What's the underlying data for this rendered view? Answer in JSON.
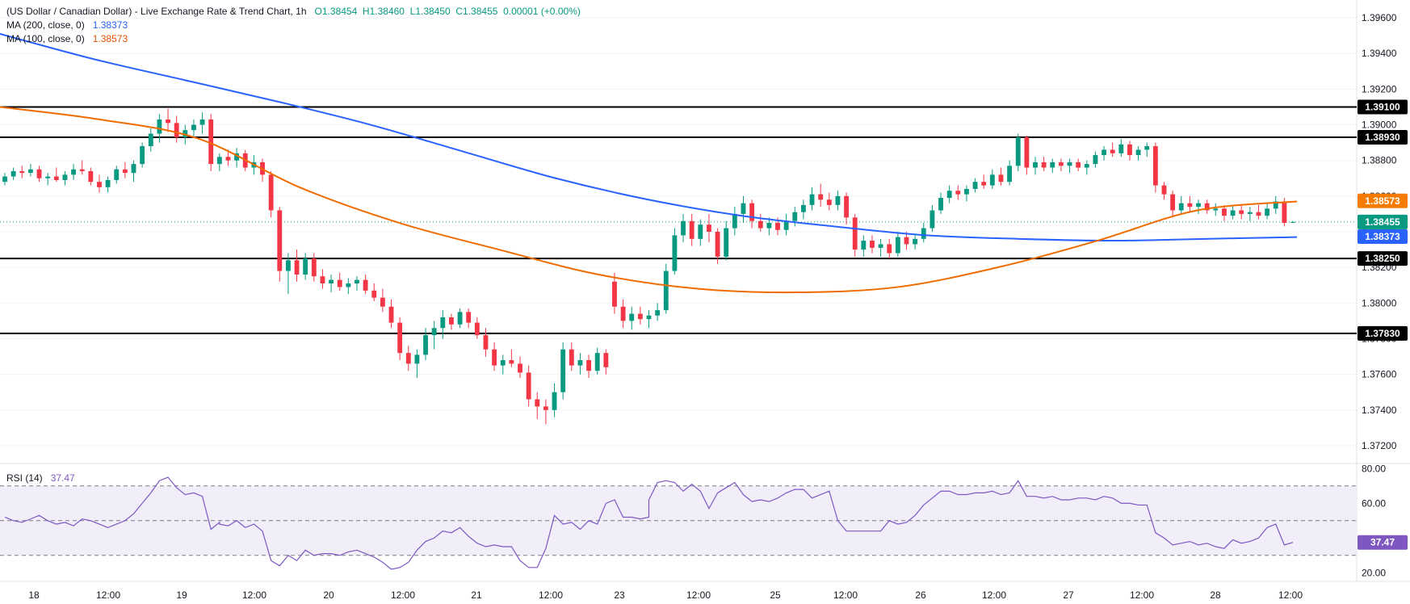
{
  "legend": {
    "title": "(US Dollar / Canadian Dollar) - Live Exchange Rate & Trend Chart, 1h",
    "open": "O1.38454",
    "high": "H1.38460",
    "low": "L1.38450",
    "close": "C1.38455",
    "change": "0.00001 (+0.00%)",
    "ma200_label": "MA (200, close, 0)",
    "ma200_value": "1.38373",
    "ma100_label": "MA (100, close, 0)",
    "ma100_value": "1.38573",
    "rsi_label": "RSI (14)",
    "rsi_value": "37.47"
  },
  "colors": {
    "up": "#089981",
    "down": "#f23645",
    "ma200": "#2962ff",
    "ma100": "#ef6c00",
    "rsi": "#7e57c2",
    "rsi_band": "#ede7f6",
    "level": "#000000",
    "grid": "#f0f3fa"
  },
  "chart_data": [
    {
      "type": "candlestick",
      "title": "",
      "ylim": [
        1.371,
        1.397
      ],
      "y_ticks": [
        "1.39600",
        "1.39400",
        "1.39200",
        "1.39000",
        "1.38800",
        "1.38600",
        "1.38400",
        "1.38200",
        "1.38000",
        "1.37800",
        "1.37600",
        "1.37400",
        "1.37200"
      ],
      "x_ticks": [
        "18",
        "12:00",
        "19",
        "12:00",
        "20",
        "12:00",
        "21",
        "12:00",
        "23",
        "12:00",
        "25",
        "12:00",
        "26",
        "12:00",
        "27",
        "12:00",
        "28",
        "12:00"
      ],
      "current_price_label": "1.38455",
      "horizontal_levels": [
        {
          "value": 1.391,
          "label": "1.39100"
        },
        {
          "value": 1.3893,
          "label": "1.38930"
        },
        {
          "value": 1.3825,
          "label": "1.38250"
        },
        {
          "value": 1.3783,
          "label": "1.37830"
        }
      ],
      "ma_tags": [
        {
          "value": 1.38573,
          "label": "1.38573"
        },
        {
          "value": 1.38373,
          "label": "1.38373"
        }
      ],
      "candles": [
        [
          1.3868,
          1.3873,
          1.3866,
          1.3871
        ],
        [
          1.3871,
          1.3876,
          1.3869,
          1.3874
        ],
        [
          1.3874,
          1.3877,
          1.387,
          1.3873
        ],
        [
          1.3873,
          1.3878,
          1.3871,
          1.3875
        ],
        [
          1.3875,
          1.3877,
          1.3868,
          1.387
        ],
        [
          1.387,
          1.3873,
          1.3866,
          1.3871
        ],
        [
          1.3871,
          1.3876,
          1.3868,
          1.3869
        ],
        [
          1.3869,
          1.3874,
          1.3866,
          1.3872
        ],
        [
          1.3872,
          1.3878,
          1.3869,
          1.3875
        ],
        [
          1.3875,
          1.388,
          1.3872,
          1.3874
        ],
        [
          1.3874,
          1.3876,
          1.3866,
          1.3868
        ],
        [
          1.3868,
          1.3872,
          1.3862,
          1.3865
        ],
        [
          1.3865,
          1.3871,
          1.3862,
          1.3869
        ],
        [
          1.3869,
          1.3877,
          1.3867,
          1.3875
        ],
        [
          1.3875,
          1.3879,
          1.387,
          1.3873
        ],
        [
          1.3873,
          1.388,
          1.3868,
          1.3878
        ],
        [
          1.3878,
          1.389,
          1.3876,
          1.3888
        ],
        [
          1.3888,
          1.3898,
          1.3885,
          1.3895
        ],
        [
          1.3895,
          1.3906,
          1.389,
          1.3903
        ],
        [
          1.3903,
          1.3909,
          1.3896,
          1.3901
        ],
        [
          1.3901,
          1.3905,
          1.389,
          1.3893
        ],
        [
          1.3893,
          1.39,
          1.3889,
          1.3897
        ],
        [
          1.3897,
          1.3903,
          1.3893,
          1.39
        ],
        [
          1.39,
          1.3907,
          1.3895,
          1.3903
        ],
        [
          1.3903,
          1.3906,
          1.3874,
          1.3878
        ],
        [
          1.3878,
          1.3884,
          1.3874,
          1.3882
        ],
        [
          1.3882,
          1.3886,
          1.3877,
          1.388
        ],
        [
          1.388,
          1.3887,
          1.3876,
          1.3884
        ],
        [
          1.3884,
          1.3886,
          1.3874,
          1.3876
        ],
        [
          1.3876,
          1.3883,
          1.3872,
          1.3879
        ],
        [
          1.3879,
          1.3881,
          1.3868,
          1.3872
        ],
        [
          1.3872,
          1.3874,
          1.3848,
          1.3852
        ],
        [
          1.3852,
          1.3854,
          1.3812,
          1.3818
        ],
        [
          1.3818,
          1.3828,
          1.3805,
          1.3824
        ],
        [
          1.3824,
          1.383,
          1.3812,
          1.3816
        ],
        [
          1.3816,
          1.3828,
          1.3813,
          1.3825
        ],
        [
          1.3825,
          1.3828,
          1.3812,
          1.3815
        ],
        [
          1.3815,
          1.3819,
          1.3808,
          1.3811
        ],
        [
          1.3811,
          1.3816,
          1.3806,
          1.3813
        ],
        [
          1.3813,
          1.3817,
          1.3807,
          1.3809
        ],
        [
          1.3809,
          1.3814,
          1.3805,
          1.3811
        ],
        [
          1.3811,
          1.3815,
          1.3807,
          1.3813
        ],
        [
          1.3813,
          1.3816,
          1.3805,
          1.3807
        ],
        [
          1.3807,
          1.3811,
          1.3801,
          1.3803
        ],
        [
          1.3803,
          1.3808,
          1.3795,
          1.3798
        ],
        [
          1.3798,
          1.3802,
          1.3786,
          1.3789
        ],
        [
          1.3789,
          1.3792,
          1.3768,
          1.3772
        ],
        [
          1.3772,
          1.3776,
          1.3762,
          1.3766
        ],
        [
          1.3766,
          1.3774,
          1.3758,
          1.3771
        ],
        [
          1.3771,
          1.3786,
          1.3768,
          1.3782
        ],
        [
          1.3782,
          1.379,
          1.3774,
          1.3786
        ],
        [
          1.3786,
          1.3796,
          1.378,
          1.3792
        ],
        [
          1.3792,
          1.3794,
          1.3785,
          1.3788
        ],
        [
          1.3788,
          1.3797,
          1.3786,
          1.3795
        ],
        [
          1.3795,
          1.3797,
          1.3786,
          1.3789
        ],
        [
          1.3789,
          1.3792,
          1.378,
          1.3782
        ],
        [
          1.3782,
          1.3786,
          1.377,
          1.3774
        ],
        [
          1.3774,
          1.3778,
          1.3762,
          1.3765
        ],
        [
          1.3765,
          1.3771,
          1.376,
          1.3768
        ],
        [
          1.3768,
          1.3774,
          1.3764,
          1.3766
        ],
        [
          1.3766,
          1.377,
          1.3758,
          1.3761
        ],
        [
          1.3761,
          1.3765,
          1.3742,
          1.3746
        ],
        [
          1.3746,
          1.375,
          1.3735,
          1.3742
        ],
        [
          1.3742,
          1.3746,
          1.3732,
          1.374
        ],
        [
          1.374,
          1.3755,
          1.3736,
          1.375
        ],
        [
          1.375,
          1.3778,
          1.3746,
          1.3774
        ],
        [
          1.3774,
          1.3778,
          1.3762,
          1.3765
        ],
        [
          1.3765,
          1.3772,
          1.376,
          1.3768
        ],
        [
          1.3768,
          1.3771,
          1.3758,
          1.3762
        ],
        [
          1.3762,
          1.3775,
          1.376,
          1.3772
        ],
        [
          1.3772,
          1.3774,
          1.376,
          1.3764
        ],
        [
          1.3812,
          1.3817,
          1.3794,
          1.3798
        ],
        [
          1.3798,
          1.3802,
          1.3786,
          1.379
        ],
        [
          1.379,
          1.3798,
          1.3785,
          1.3794
        ],
        [
          1.3794,
          1.3798,
          1.3788,
          1.3791
        ],
        [
          1.3791,
          1.3796,
          1.3786,
          1.3793
        ],
        [
          1.3793,
          1.38,
          1.379,
          1.3796
        ],
        [
          1.3796,
          1.3822,
          1.3794,
          1.3818
        ],
        [
          1.3818,
          1.3842,
          1.3816,
          1.3838
        ],
        [
          1.3838,
          1.385,
          1.3834,
          1.3846
        ],
        [
          1.3846,
          1.385,
          1.3832,
          1.3836
        ],
        [
          1.3836,
          1.3847,
          1.3832,
          1.3844
        ],
        [
          1.3844,
          1.385,
          1.3834,
          1.384
        ],
        [
          1.384,
          1.3842,
          1.3822,
          1.3826
        ],
        [
          1.3826,
          1.3846,
          1.3824,
          1.3842
        ],
        [
          1.3842,
          1.3854,
          1.3838,
          1.385
        ],
        [
          1.385,
          1.386,
          1.3845,
          1.3856
        ],
        [
          1.3856,
          1.3858,
          1.3842,
          1.3846
        ],
        [
          1.3846,
          1.385,
          1.384,
          1.3842
        ],
        [
          1.3842,
          1.3848,
          1.3838,
          1.3845
        ],
        [
          1.3845,
          1.3848,
          1.3838,
          1.3841
        ],
        [
          1.3841,
          1.385,
          1.3838,
          1.3846
        ],
        [
          1.3846,
          1.3854,
          1.3843,
          1.3851
        ],
        [
          1.3851,
          1.3858,
          1.3847,
          1.3855
        ],
        [
          1.3855,
          1.3865,
          1.3852,
          1.3861
        ],
        [
          1.3861,
          1.3867,
          1.3854,
          1.3858
        ],
        [
          1.3858,
          1.3862,
          1.3852,
          1.3855
        ],
        [
          1.3855,
          1.3863,
          1.3852,
          1.386
        ],
        [
          1.386,
          1.3862,
          1.3844,
          1.3848
        ],
        [
          1.3848,
          1.385,
          1.3826,
          1.383
        ],
        [
          1.383,
          1.3838,
          1.3826,
          1.3835
        ],
        [
          1.3835,
          1.3838,
          1.3828,
          1.3831
        ],
        [
          1.3831,
          1.3836,
          1.3826,
          1.3833
        ],
        [
          1.3833,
          1.3836,
          1.3825,
          1.3828
        ],
        [
          1.3828,
          1.384,
          1.3826,
          1.3837
        ],
        [
          1.3837,
          1.384,
          1.383,
          1.3833
        ],
        [
          1.3833,
          1.3838,
          1.383,
          1.3836
        ],
        [
          1.3836,
          1.3845,
          1.3834,
          1.3842
        ],
        [
          1.3842,
          1.3855,
          1.384,
          1.3852
        ],
        [
          1.3852,
          1.3862,
          1.385,
          1.3859
        ],
        [
          1.3859,
          1.3866,
          1.3856,
          1.3863
        ],
        [
          1.3863,
          1.3866,
          1.3858,
          1.3861
        ],
        [
          1.3861,
          1.3866,
          1.3857,
          1.3864
        ],
        [
          1.3864,
          1.387,
          1.3862,
          1.3868
        ],
        [
          1.3868,
          1.3872,
          1.3864,
          1.3866
        ],
        [
          1.3866,
          1.3875,
          1.3864,
          1.3872
        ],
        [
          1.3872,
          1.3876,
          1.3866,
          1.3868
        ],
        [
          1.3868,
          1.388,
          1.3866,
          1.3877
        ],
        [
          1.3877,
          1.3895,
          1.3874,
          1.3893
        ],
        [
          1.3893,
          1.3894,
          1.3872,
          1.3876
        ],
        [
          1.3876,
          1.3882,
          1.3872,
          1.3879
        ],
        [
          1.3879,
          1.3882,
          1.3874,
          1.3876
        ],
        [
          1.3876,
          1.3881,
          1.3873,
          1.3879
        ],
        [
          1.3879,
          1.3881,
          1.3874,
          1.3877
        ],
        [
          1.3877,
          1.3881,
          1.3873,
          1.3879
        ],
        [
          1.3879,
          1.3881,
          1.3874,
          1.3876
        ],
        [
          1.3876,
          1.388,
          1.3872,
          1.3878
        ],
        [
          1.3878,
          1.3885,
          1.3876,
          1.3883
        ],
        [
          1.3883,
          1.3888,
          1.388,
          1.3886
        ],
        [
          1.3886,
          1.389,
          1.3882,
          1.3884
        ],
        [
          1.3884,
          1.3892,
          1.3882,
          1.3889
        ],
        [
          1.3889,
          1.3891,
          1.388,
          1.3883
        ],
        [
          1.3883,
          1.3888,
          1.388,
          1.3886
        ],
        [
          1.3886,
          1.389,
          1.3882,
          1.3888
        ],
        [
          1.3888,
          1.389,
          1.3862,
          1.3866
        ],
        [
          1.3866,
          1.3868,
          1.3858,
          1.3861
        ],
        [
          1.3861,
          1.3863,
          1.3848,
          1.3852
        ],
        [
          1.3852,
          1.386,
          1.385,
          1.3856
        ],
        [
          1.3856,
          1.386,
          1.3851,
          1.3854
        ],
        [
          1.3854,
          1.3858,
          1.385,
          1.3856
        ],
        [
          1.3856,
          1.3858,
          1.385,
          1.3852
        ],
        [
          1.3852,
          1.3856,
          1.3849,
          1.3853
        ],
        [
          1.3853,
          1.3855,
          1.3846,
          1.3849
        ],
        [
          1.3849,
          1.3855,
          1.3847,
          1.3852
        ],
        [
          1.3852,
          1.3855,
          1.3847,
          1.385
        ],
        [
          1.385,
          1.3854,
          1.3846,
          1.3851
        ],
        [
          1.3851,
          1.3855,
          1.3847,
          1.3849
        ],
        [
          1.3849,
          1.3856,
          1.3847,
          1.3853
        ],
        [
          1.3853,
          1.386,
          1.385,
          1.3857
        ],
        [
          1.3857,
          1.3859,
          1.3843,
          1.3845
        ],
        [
          1.38454,
          1.3846,
          1.3845,
          1.38455
        ]
      ],
      "ma200": [
        1.3951,
        1.3937,
        1.3925,
        1.3913,
        1.39,
        1.3885,
        1.387,
        1.3858,
        1.3849,
        1.3843,
        1.3838,
        1.3836,
        1.3835,
        1.3836,
        1.3837
      ],
      "ma100": [
        1.391,
        1.3903,
        1.3892,
        1.3865,
        1.3845,
        1.383,
        1.3816,
        1.3808,
        1.3806,
        1.3809,
        1.382,
        1.3835,
        1.3852,
        1.3857
      ],
      "ma100_start_fraction": 0.0,
      "ma_x_fraction_note": "MA sample values evenly spaced over the candle range"
    },
    {
      "type": "line",
      "title": "",
      "series_name": "",
      "ylim": [
        15,
        82
      ],
      "y_ticks": [
        "80.00",
        "60.00",
        "20.00"
      ],
      "bands": [
        70,
        50,
        30
      ],
      "current_label": "37.47",
      "rsi": [
        52,
        50,
        49,
        51,
        53,
        50,
        48,
        49,
        47,
        51,
        50,
        48,
        46,
        48,
        50,
        54,
        60,
        66,
        73,
        75,
        69,
        65,
        66,
        64,
        45,
        49,
        48,
        47,
        50,
        46,
        48,
        44,
        27,
        24,
        30,
        27,
        33,
        30,
        31,
        31,
        30,
        32,
        33,
        31,
        29,
        26,
        22,
        23,
        26,
        33,
        38,
        40,
        44,
        43,
        46,
        41,
        37,
        35,
        36,
        35,
        35,
        27,
        23,
        23,
        34,
        53,
        48,
        49,
        45,
        50,
        48,
        60,
        62,
        52,
        52,
        51,
        52,
        62,
        72,
        73,
        72,
        67,
        71,
        67,
        57,
        66,
        69,
        72,
        65,
        61,
        62,
        61,
        63,
        66,
        68,
        68,
        63,
        65,
        67,
        50,
        44,
        44,
        44,
        44,
        44,
        50,
        48,
        49,
        53,
        59,
        63,
        67,
        67,
        65,
        65,
        66,
        66,
        67,
        65,
        66,
        73,
        64,
        64,
        63,
        64,
        62,
        62,
        63,
        63,
        63,
        62,
        64,
        63,
        60,
        60,
        59,
        59,
        43,
        40,
        36,
        37,
        38,
        36,
        37,
        35,
        34,
        39,
        37,
        38,
        40,
        46,
        48,
        36,
        37.47
      ]
    }
  ]
}
